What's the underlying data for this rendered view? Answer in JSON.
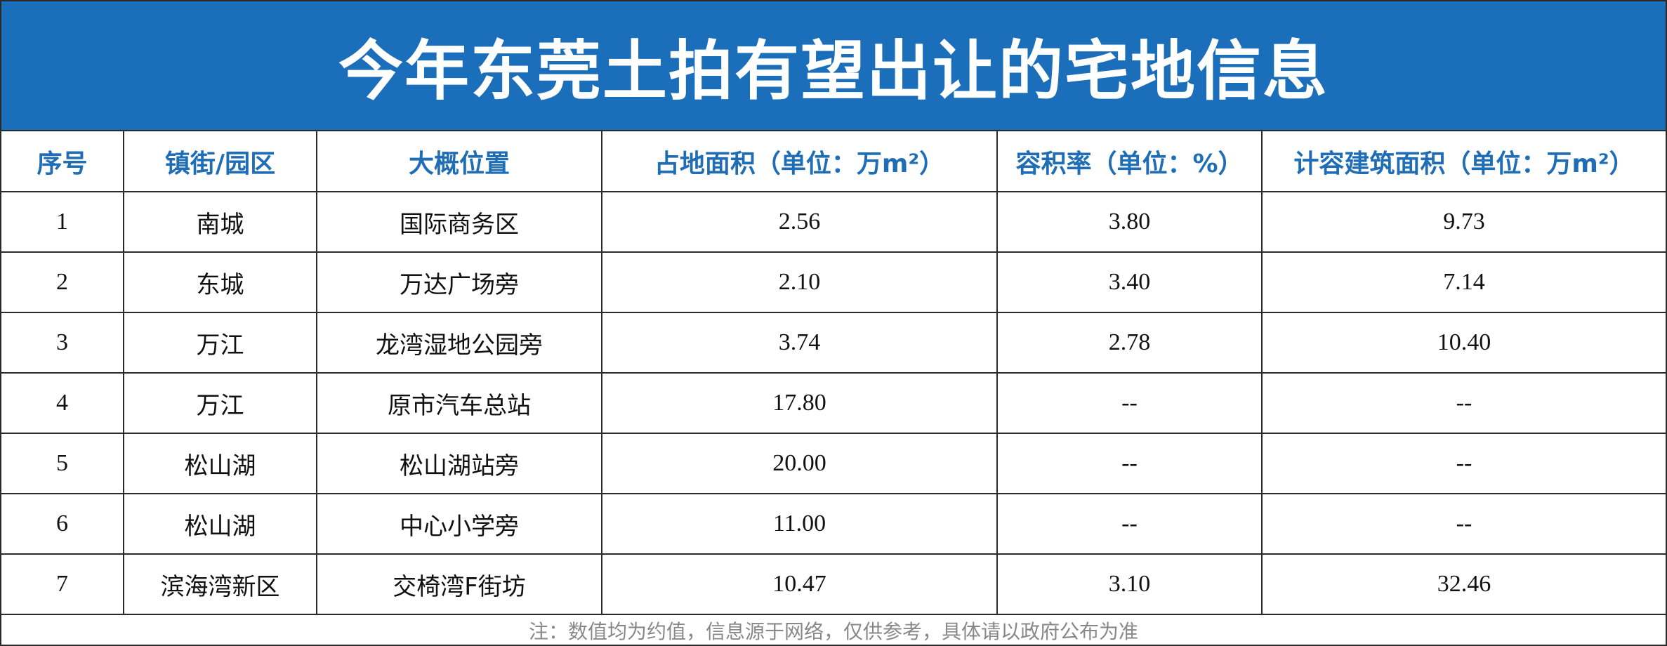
{
  "title": "今年东莞土拍有望出让的宅地信息",
  "table": {
    "header": [
      "序号",
      "镇街/园区",
      "大概位置",
      "占地面积（单位：万m²）",
      "容积率（单位：%）",
      "计容建筑面积（单位：万m²）"
    ],
    "rows": [
      [
        "1",
        "南城",
        "国际商务区",
        "2.56",
        "3.80",
        "9.73"
      ],
      [
        "2",
        "东城",
        "万达广场旁",
        "2.10",
        "3.40",
        "7.14"
      ],
      [
        "3",
        "万江",
        "龙湾湿地公园旁",
        "3.74",
        "2.78",
        "10.40"
      ],
      [
        "4",
        "万江",
        "原市汽车总站",
        "17.80",
        "--",
        "--"
      ],
      [
        "5",
        "松山湖",
        "松山湖站旁",
        "20.00",
        "--",
        "--"
      ],
      [
        "6",
        "松山湖",
        "中心小学旁",
        "11.00",
        "--",
        "--"
      ],
      [
        "7",
        "滨海湾新区",
        "交椅湾F街坊",
        "10.47",
        "3.10",
        "32.46"
      ]
    ]
  },
  "footnote": "注：数值均为约值，信息源于网络，仅供参考，具体请以政府公布为准"
}
